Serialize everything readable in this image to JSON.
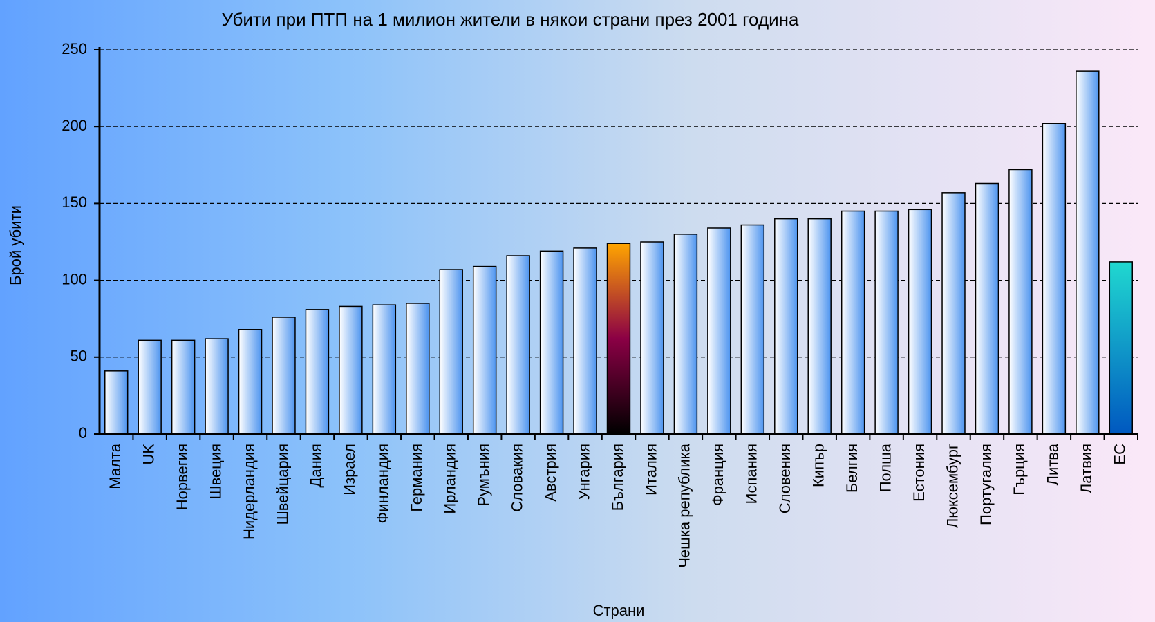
{
  "chart_data": {
    "type": "bar",
    "title": "Убити при ПТП на 1 милион жители в някои страни през 2001 година",
    "x_label": "Страни",
    "y_label": "Брой убити",
    "categories": [
      "Малта",
      "UK",
      "Норвегия",
      "Швеция",
      "Нидерландия",
      "Швейцария",
      "Дания",
      "Израел",
      "Финландия",
      "Германия",
      "Ирландия",
      "Румъния",
      "Словакия",
      "Австрия",
      "Унгария",
      "България",
      "Италия",
      "Чешка република",
      "Франция",
      "Испания",
      "Словения",
      "Кипър",
      "Белгия",
      "Полша",
      "Естония",
      "Люксембург",
      "Португалия",
      "Гърция",
      "Литва",
      "Латвия",
      "ЕС"
    ],
    "values": [
      41,
      61,
      61,
      62,
      68,
      76,
      81,
      83,
      84,
      85,
      107,
      109,
      116,
      119,
      121,
      124,
      125,
      130,
      134,
      136,
      140,
      140,
      145,
      145,
      146,
      157,
      163,
      172,
      202,
      236,
      112
    ],
    "colors": [
      "#4d94ef",
      "#4d94ef",
      "#4d94ef",
      "#4d94ef",
      "#4d94ef",
      "#4d94ef",
      "#4d94ef",
      "#4d94ef",
      "#4d94ef",
      "#4d94ef",
      "#4d94ef",
      "#4d94ef",
      "#4d94ef",
      "#4d94ef",
      "#4d94ef",
      [
        "#ffa500",
        "#8b0045",
        "#000000"
      ],
      "#4d94ef",
      "#4d94ef",
      "#4d94ef",
      "#4d94ef",
      "#4d94ef",
      "#4d94ef",
      "#4d94ef",
      "#4d94ef",
      "#4d94ef",
      "#4d94ef",
      "#4d94ef",
      "#4d94ef",
      "#4d94ef",
      "#4d94ef",
      [
        "#20d8d0",
        "#0058c0"
      ]
    ],
    "ylim": [
      0,
      250
    ],
    "yticks": [
      0,
      50,
      100,
      150,
      200,
      250
    ],
    "grid": true
  }
}
